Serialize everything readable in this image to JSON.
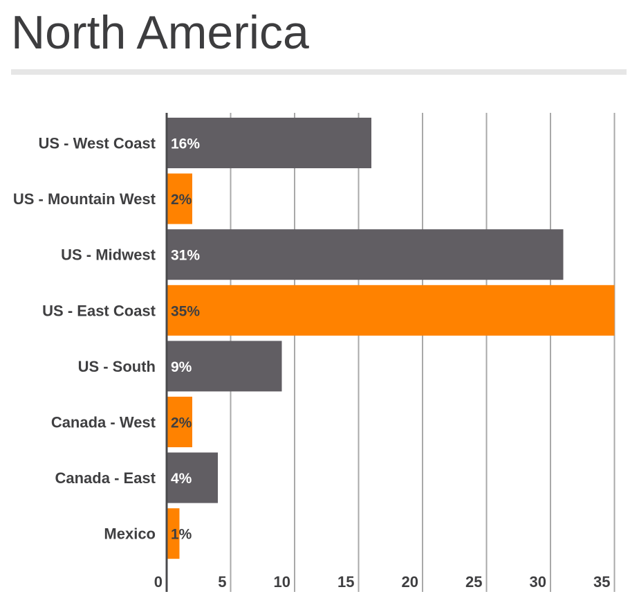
{
  "chart_data": {
    "type": "bar",
    "orientation": "horizontal",
    "title": "North America",
    "categories": [
      "US - West Coast",
      "US - Mountain West",
      "US - Midwest",
      "US - East Coast",
      "US - South",
      "Canada - West",
      "Canada - East",
      "Mexico"
    ],
    "values": [
      16,
      2,
      31,
      35,
      9,
      2,
      4,
      1
    ],
    "data_labels": [
      "16%",
      "2%",
      "31%",
      "35%",
      "9%",
      "2%",
      "4%",
      "1%"
    ],
    "bar_colors": [
      "#615e63",
      "#ff8200",
      "#615e63",
      "#ff8200",
      "#615e63",
      "#ff8200",
      "#615e63",
      "#ff8200"
    ],
    "x_ticks": [
      0,
      5,
      10,
      15,
      20,
      25,
      30,
      35
    ],
    "xlim": [
      0,
      35
    ],
    "xlabel": "",
    "ylabel": "",
    "grid": "vertical",
    "legend": "none"
  },
  "colors": {
    "primary_bar": "#615e63",
    "accent_bar": "#ff8200",
    "text": "#3f3f41",
    "grid": "#a8a8a8"
  }
}
